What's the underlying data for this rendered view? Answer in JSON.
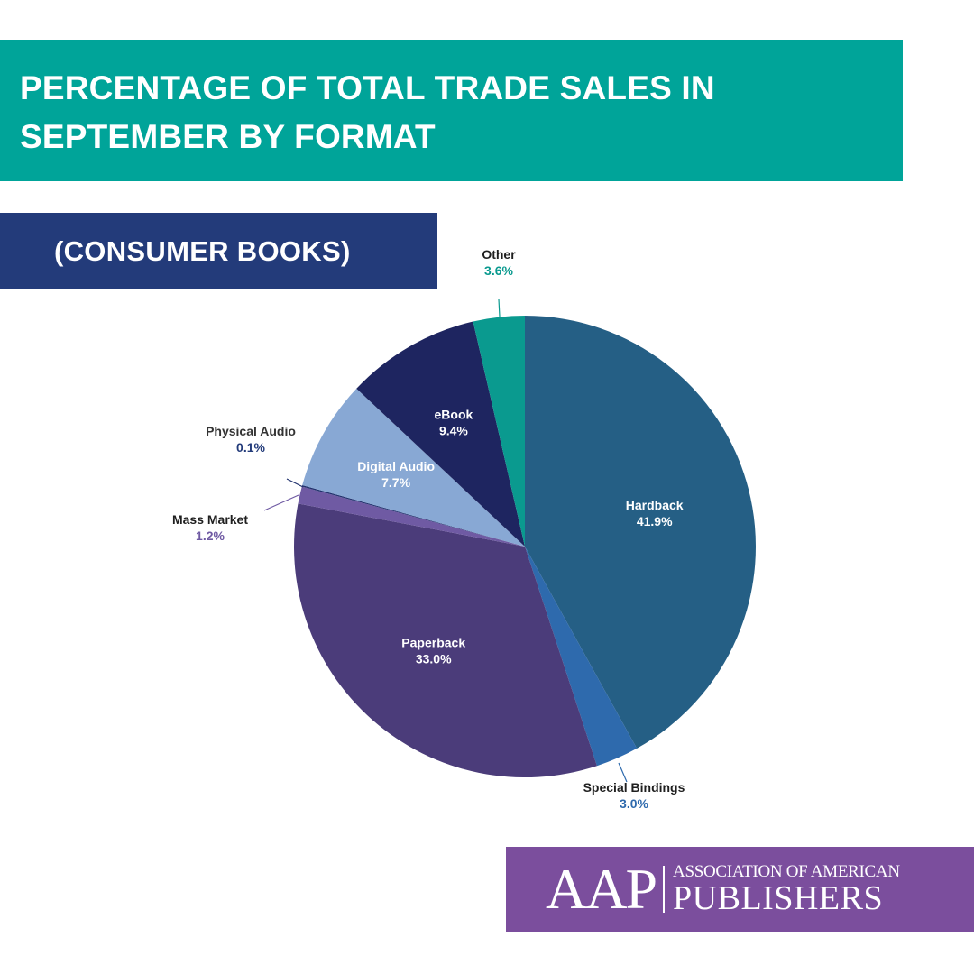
{
  "header": {
    "title": "PERCENTAGE OF TOTAL TRADE SALES IN SEPTEMBER BY FORMAT",
    "subtitle": "(CONSUMER BOOKS)"
  },
  "chart_data": {
    "type": "pie",
    "title": "PERCENTAGE OF TOTAL TRADE SALES IN SEPTEMBER BY FORMAT",
    "subtitle": "(CONSUMER BOOKS)",
    "unit": "%",
    "start_angle_deg": 0,
    "direction": "clockwise",
    "slices": [
      {
        "name": "Hardback",
        "value": 41.9,
        "label": "41.9%",
        "color": "#255f85",
        "label_position": "inside",
        "name_color": "#ffffff",
        "value_color": "#ffffff"
      },
      {
        "name": "Special Bindings",
        "value": 3.0,
        "label": "3.0%",
        "color": "#2e6aad",
        "label_position": "outside",
        "name_color": "#1f1f1f",
        "value_color": "#2e6aad"
      },
      {
        "name": "Paperback",
        "value": 33.0,
        "label": "33.0%",
        "color": "#4b3c7a",
        "label_position": "inside",
        "name_color": "#ffffff",
        "value_color": "#ffffff"
      },
      {
        "name": "Mass Market",
        "value": 1.2,
        "label": "1.2%",
        "color": "#6f5aa3",
        "label_position": "outside",
        "name_color": "#1f1f1f",
        "value_color": "#6f5aa3"
      },
      {
        "name": "Physical Audio",
        "value": 0.1,
        "label": "0.1%",
        "color": "#23336f",
        "label_position": "outside",
        "name_color": "#333333",
        "value_color": "#233b7a"
      },
      {
        "name": "Digital Audio",
        "value": 7.7,
        "label": "7.7%",
        "color": "#88a8d4",
        "label_position": "inside",
        "name_color": "#ffffff",
        "value_color": "#ffffff"
      },
      {
        "name": "eBook",
        "value": 9.4,
        "label": "9.4%",
        "color": "#1e2560",
        "label_position": "inside",
        "name_color": "#ffffff",
        "value_color": "#ffffff"
      },
      {
        "name": "Other",
        "value": 3.6,
        "label": "3.6%",
        "color": "#0a9a8f",
        "label_position": "outside",
        "name_color": "#1f1f1f",
        "value_color": "#0a9a8f"
      }
    ]
  },
  "logo": {
    "mark": "AAP",
    "line1": "ASSOCIATION OF AMERICAN",
    "line2": "PUBLISHERS"
  },
  "colors": {
    "title_banner": "#00a499",
    "subtitle_banner": "#233b7a",
    "logo_background": "#7b4e9d"
  }
}
